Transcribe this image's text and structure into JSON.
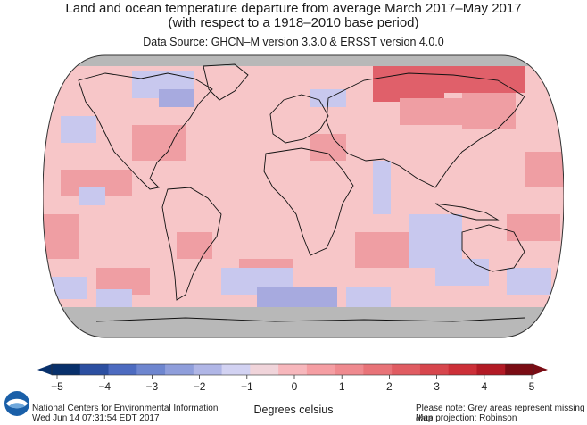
{
  "header": {
    "title_line1": "Land and ocean temperature departure from average March 2017–May 2017",
    "title_line2": "(with respect to a 1918–2010 base period)",
    "data_source": "Data Source: GHCN–M version 3.3.0 & ERSST version 4.0.0"
  },
  "colorbar": {
    "ticks": [
      "−5",
      "−4",
      "−3",
      "−2",
      "−1",
      "0",
      "1",
      "2",
      "3",
      "4",
      "5"
    ],
    "range": [
      -5,
      5
    ],
    "label": "Degrees celsius",
    "colors": [
      "#08306b",
      "#2c4fa1",
      "#4d6bc0",
      "#6e86cf",
      "#8f9edb",
      "#b0b6e6",
      "#d2d2f2",
      "#f0d4da",
      "#f7b7bc",
      "#f59ea3",
      "#ef8a8f",
      "#e87378",
      "#e05c62",
      "#d7464d",
      "#cc2f38",
      "#b21a25",
      "#7a0c14"
    ]
  },
  "footer": {
    "org": "National Centers for Environmental Information",
    "timestamp": "Wed Jun 14 07:31:54 EDT 2017",
    "note": "Please note: Grey areas represent missing data",
    "projection": "Map projection: Robinson"
  },
  "palette": {
    "missing": "#b8b8b8",
    "warm_light": "#f7c6c8",
    "warm_mid": "#ef9ea3",
    "warm_strong": "#e0606a",
    "cool_light": "#c8c8ee",
    "cool_mid": "#a7aadf"
  }
}
